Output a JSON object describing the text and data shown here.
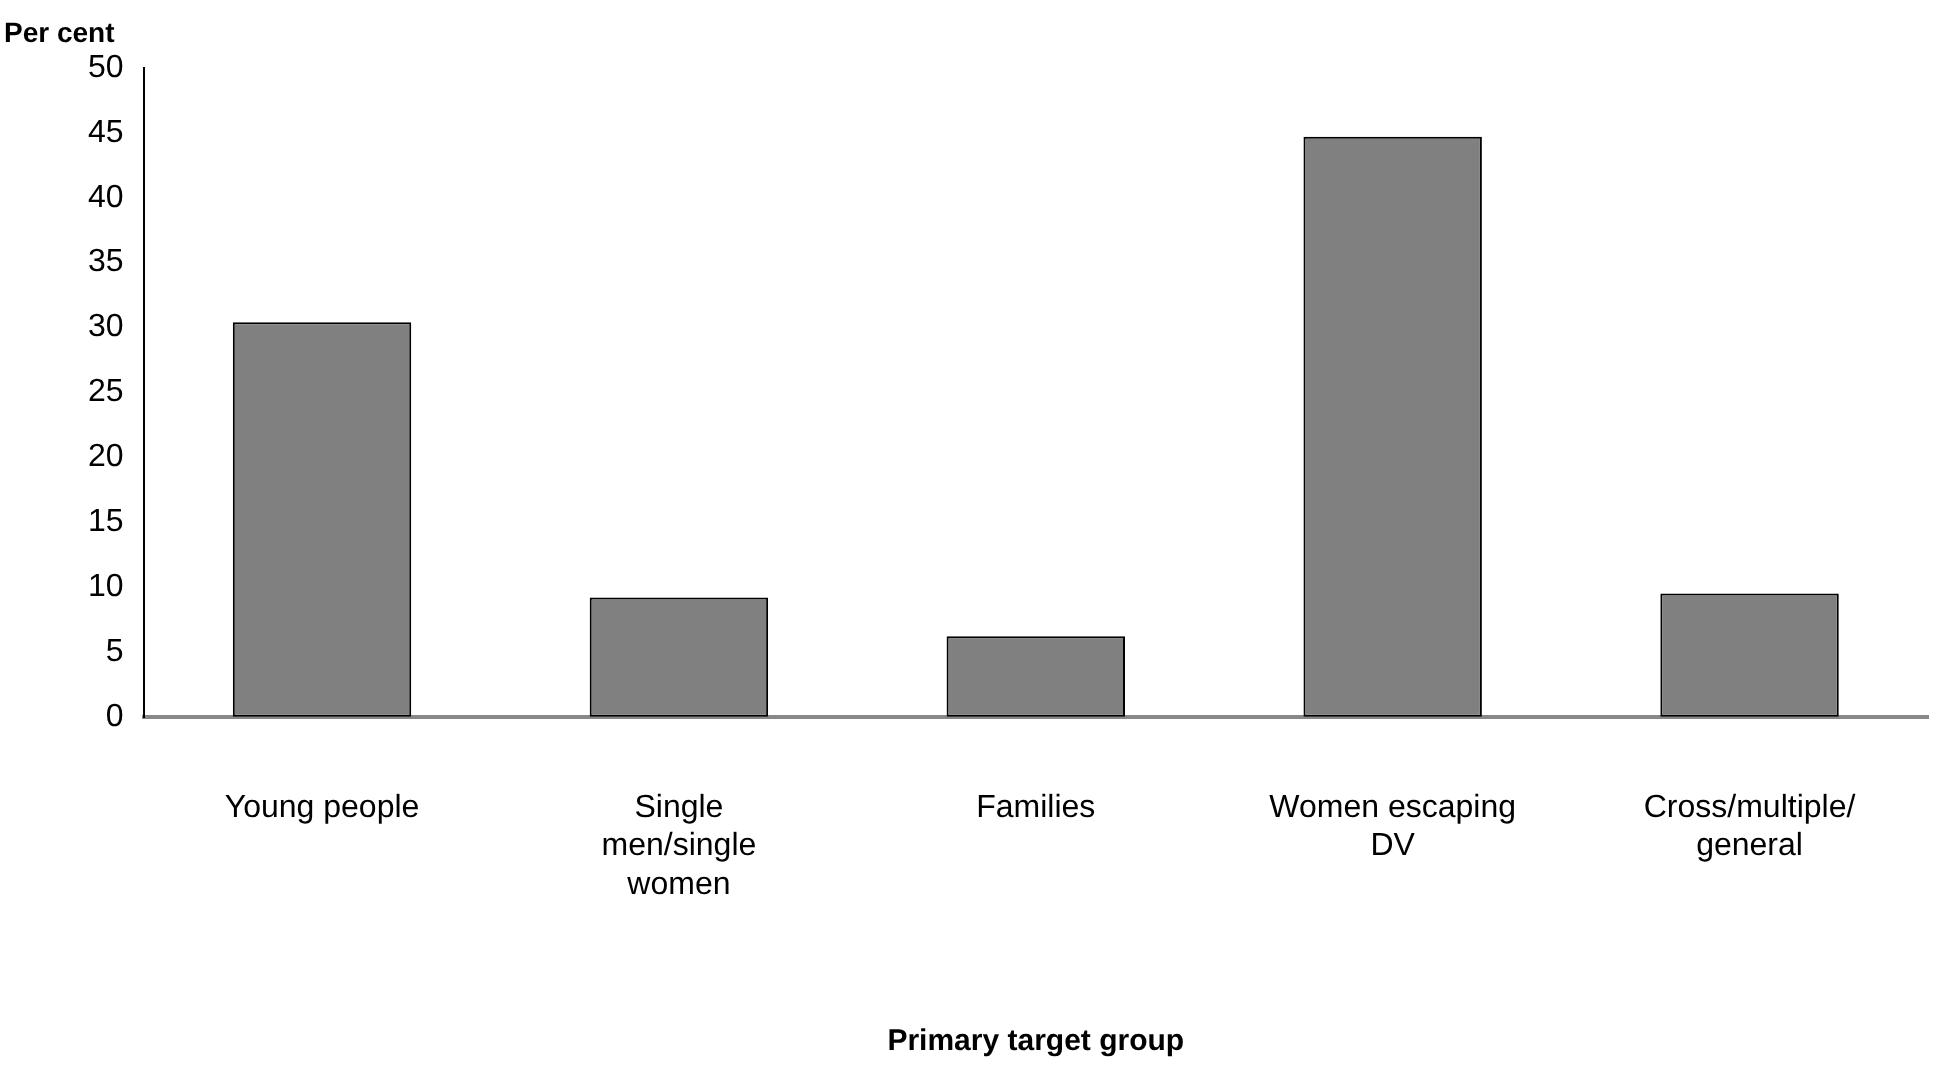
{
  "chart_data": {
    "type": "bar",
    "ylabel": "Per cent",
    "xlabel": "Primary target group",
    "categories": [
      "Young people",
      "Single men/single women",
      "Families",
      "Women escaping DV",
      "Cross/multiple/ general"
    ],
    "values": [
      30.4,
      9.2,
      6.2,
      44.7,
      9.5
    ],
    "color": "#808080",
    "ylim": [
      0,
      50
    ],
    "yticks": [
      0,
      5,
      10,
      15,
      20,
      25,
      30,
      35,
      40,
      45,
      50
    ],
    "grid": false,
    "legend": false
  }
}
